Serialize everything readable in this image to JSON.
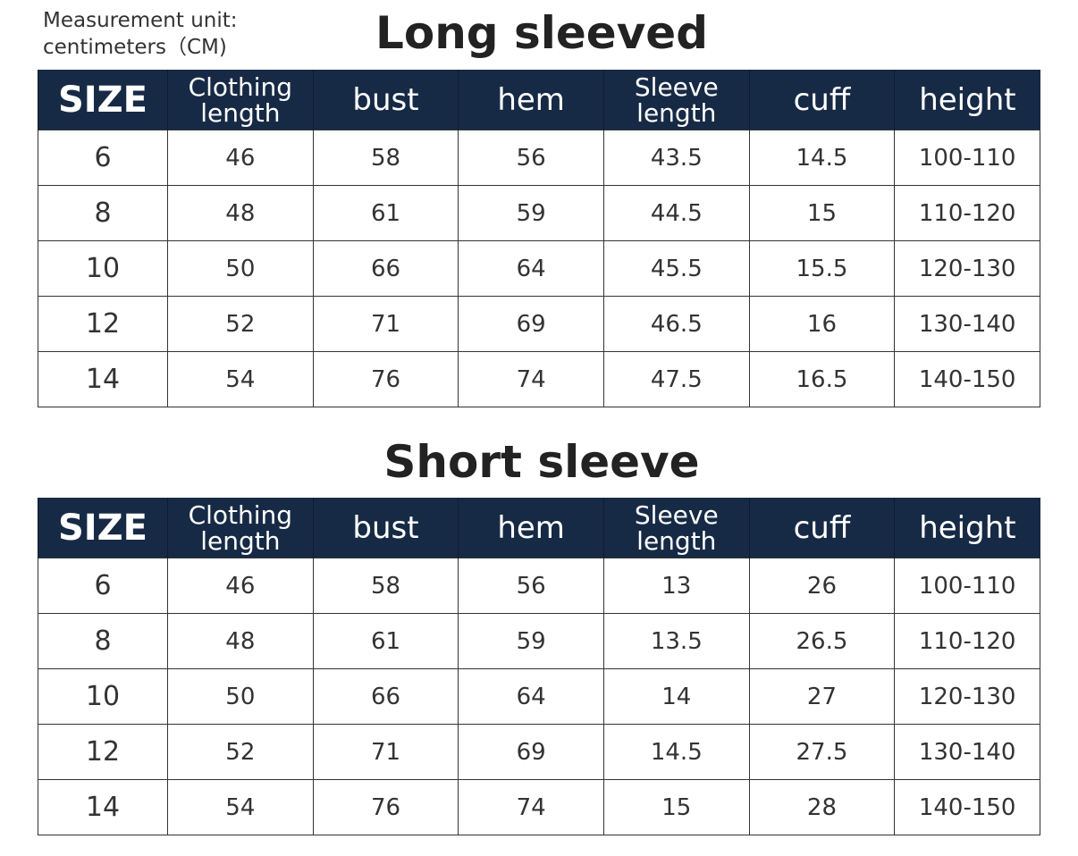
{
  "measurement_unit": {
    "line1": "Measurement unit:",
    "line2": "centimeters（CM)"
  },
  "header_color": "#172a45",
  "columns": [
    [
      "SIZE"
    ],
    [
      "Clothing",
      "length"
    ],
    [
      "bust"
    ],
    [
      "hem"
    ],
    [
      "Sleeve",
      "length"
    ],
    [
      "cuff"
    ],
    [
      "height"
    ]
  ],
  "tables": [
    {
      "title": "Long sleeved",
      "rows": [
        [
          "6",
          "46",
          "58",
          "56",
          "43.5",
          "14.5",
          "100-110"
        ],
        [
          "8",
          "48",
          "61",
          "59",
          "44.5",
          "15",
          "110-120"
        ],
        [
          "10",
          "50",
          "66",
          "64",
          "45.5",
          "15.5",
          "120-130"
        ],
        [
          "12",
          "52",
          "71",
          "69",
          "46.5",
          "16",
          "130-140"
        ],
        [
          "14",
          "54",
          "76",
          "74",
          "47.5",
          "16.5",
          "140-150"
        ]
      ]
    },
    {
      "title": "Short sleeve",
      "rows": [
        [
          "6",
          "46",
          "58",
          "56",
          "13",
          "26",
          "100-110"
        ],
        [
          "8",
          "48",
          "61",
          "59",
          "13.5",
          "26.5",
          "110-120"
        ],
        [
          "10",
          "50",
          "66",
          "64",
          "14",
          "27",
          "120-130"
        ],
        [
          "12",
          "52",
          "71",
          "69",
          "14.5",
          "27.5",
          "130-140"
        ],
        [
          "14",
          "54",
          "76",
          "74",
          "15",
          "28",
          "140-150"
        ]
      ]
    }
  ]
}
